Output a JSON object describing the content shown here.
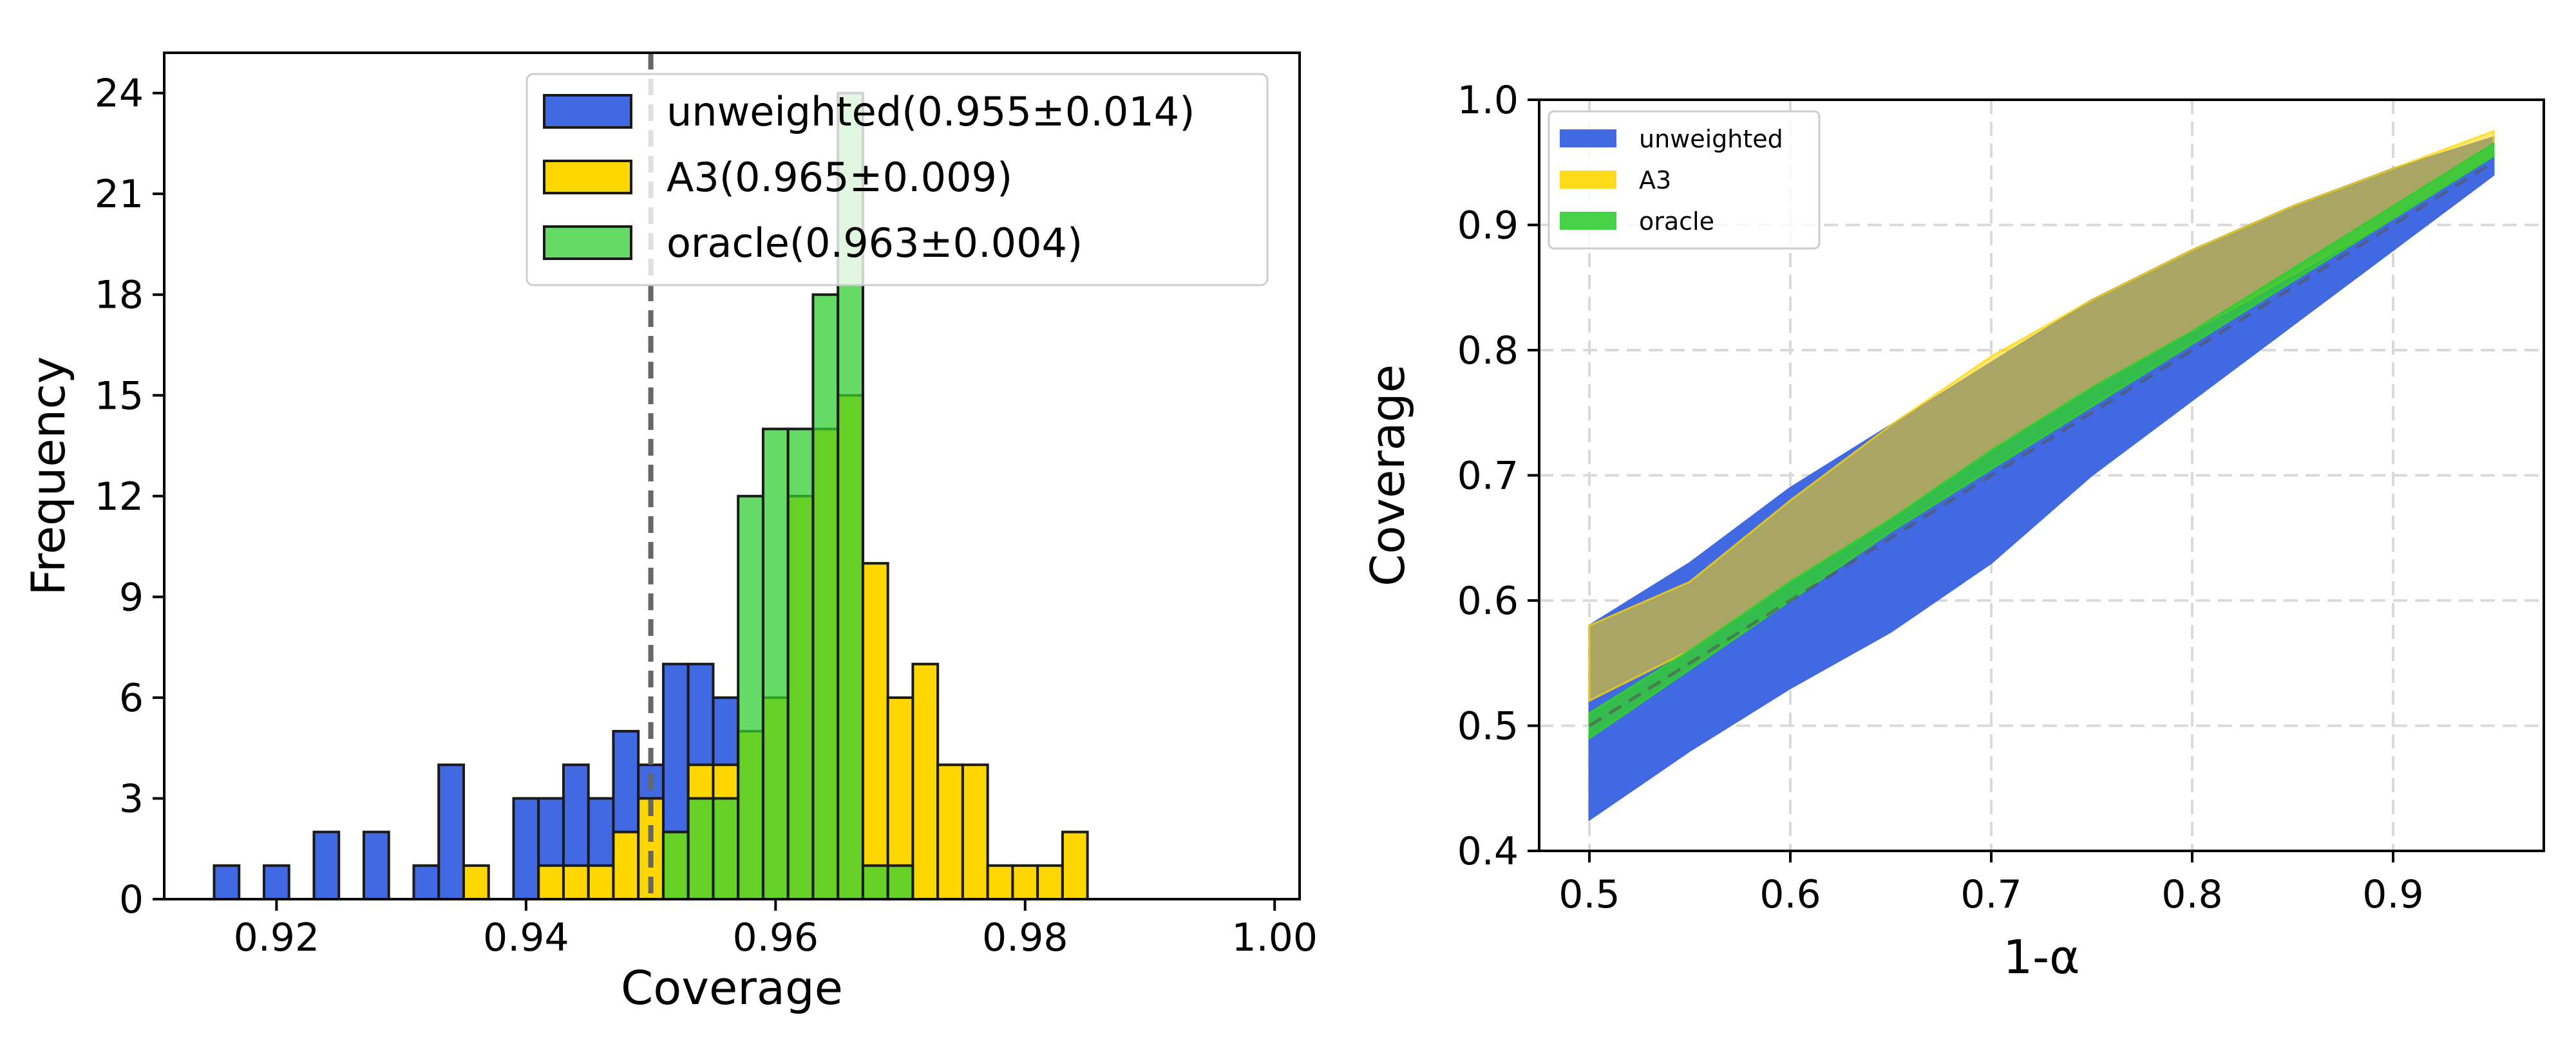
{
  "chart_data": [
    {
      "type": "histogram",
      "xlabel": "Coverage",
      "ylabel": "Frequency",
      "xlim": [
        0.911,
        1.002
      ],
      "ylim": [
        0,
        25.2
      ],
      "xticks": [
        0.92,
        0.94,
        0.96,
        0.98,
        1.0
      ],
      "xtick_labels": [
        "0.92",
        "0.94",
        "0.96",
        "0.98",
        "1.00"
      ],
      "yticks": [
        0,
        3,
        6,
        9,
        12,
        15,
        18,
        21,
        24
      ],
      "ytick_labels": [
        "0",
        "3",
        "6",
        "9",
        "12",
        "15",
        "18",
        "21",
        "24"
      ],
      "bin_start": 0.915,
      "bin_width": 0.002,
      "reference_line": {
        "x": 0.95,
        "style": "dashed",
        "color": "#666666"
      },
      "legend_position": "top-right",
      "series": [
        {
          "name": "unweighted",
          "legend_label": "unweighted(0.955±0.014)",
          "color": "#4169e1",
          "alpha": 1.0,
          "counts": [
            1,
            0,
            1,
            0,
            2,
            0,
            2,
            0,
            1,
            4,
            0,
            0,
            3,
            3,
            4,
            3,
            5,
            4,
            7,
            7,
            6,
            4,
            1,
            0,
            0,
            0,
            0,
            0,
            0,
            0,
            0,
            0,
            0,
            0,
            0
          ]
        },
        {
          "name": "A3",
          "legend_label": "A3(0.965±0.009)",
          "color": "#ffd700",
          "alpha": 1.0,
          "counts": [
            0,
            0,
            0,
            0,
            0,
            0,
            0,
            0,
            0,
            0,
            1,
            0,
            0,
            1,
            1,
            1,
            2,
            3,
            2,
            4,
            4,
            5,
            6,
            12,
            14,
            15,
            10,
            6,
            7,
            4,
            4,
            1,
            1,
            1,
            2
          ]
        },
        {
          "name": "oracle",
          "legend_label": "oracle(0.963±0.004)",
          "color": "#32cd32",
          "alpha": 0.75,
          "counts": [
            0,
            0,
            0,
            0,
            0,
            0,
            0,
            0,
            0,
            0,
            0,
            0,
            0,
            0,
            0,
            0,
            0,
            0,
            2,
            3,
            3,
            12,
            14,
            14,
            18,
            24,
            1,
            1,
            0,
            0,
            0,
            0,
            0,
            0,
            0
          ]
        }
      ]
    },
    {
      "type": "area",
      "xlabel": "1-α",
      "ylabel": "Coverage",
      "xlim": [
        0.475,
        0.975
      ],
      "ylim": [
        0.4,
        1.0
      ],
      "xticks": [
        0.5,
        0.6,
        0.7,
        0.8,
        0.9
      ],
      "xtick_labels": [
        "0.5",
        "0.6",
        "0.7",
        "0.8",
        "0.9"
      ],
      "yticks": [
        0.4,
        0.5,
        0.6,
        0.7,
        0.8,
        0.9,
        1.0
      ],
      "ytick_labels": [
        "0.4",
        "0.5",
        "0.6",
        "0.7",
        "0.8",
        "0.9",
        "1.0"
      ],
      "grid": true,
      "legend_position": "top-left",
      "x": [
        0.5,
        0.55,
        0.6,
        0.65,
        0.7,
        0.75,
        0.8,
        0.85,
        0.9,
        0.95
      ],
      "diagonal": {
        "from": [
          0.5,
          0.5
        ],
        "to": [
          0.95,
          0.95
        ],
        "style": "dashed"
      },
      "series": [
        {
          "name": "unweighted",
          "color": "#4169e1",
          "alpha": 1.0,
          "lower": [
            0.425,
            0.48,
            0.53,
            0.575,
            0.63,
            0.7,
            0.76,
            0.82,
            0.88,
            0.94
          ],
          "upper": [
            0.58,
            0.63,
            0.69,
            0.74,
            0.79,
            0.84,
            0.88,
            0.915,
            0.945,
            0.97
          ]
        },
        {
          "name": "A3",
          "color": "#ffd700",
          "alpha": 0.55,
          "lower": [
            0.52,
            0.56,
            0.615,
            0.665,
            0.72,
            0.77,
            0.815,
            0.86,
            0.905,
            0.955
          ],
          "upper": [
            0.58,
            0.615,
            0.68,
            0.74,
            0.795,
            0.84,
            0.88,
            0.915,
            0.945,
            0.975
          ]
        },
        {
          "name": "oracle",
          "color": "#32cd32",
          "alpha": 0.85,
          "lower": [
            0.49,
            0.545,
            0.6,
            0.655,
            0.705,
            0.755,
            0.805,
            0.855,
            0.905,
            0.955
          ],
          "upper": [
            0.51,
            0.56,
            0.615,
            0.665,
            0.72,
            0.77,
            0.815,
            0.865,
            0.915,
            0.965
          ]
        }
      ]
    }
  ]
}
